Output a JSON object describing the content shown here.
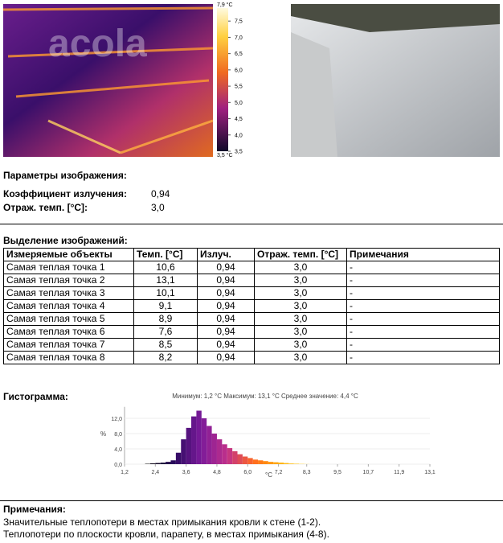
{
  "images": {
    "thermal_scale": {
      "max_label": "7,9 °C",
      "min_label": "3,5 °C",
      "lim": [
        3.5,
        7.9
      ],
      "ticks": [
        {
          "value": 7.5,
          "label": "7,5"
        },
        {
          "value": 7.0,
          "label": "7,0"
        },
        {
          "value": 6.5,
          "label": "6,5"
        },
        {
          "value": 6.0,
          "label": "6,0"
        },
        {
          "value": 5.5,
          "label": "5,5"
        },
        {
          "value": 5.0,
          "label": "5,0"
        },
        {
          "value": 4.5,
          "label": "4,5"
        },
        {
          "value": 4.0,
          "label": "4,0"
        },
        {
          "value": 3.5,
          "label": "3,5"
        }
      ]
    },
    "watermark": "acola"
  },
  "image_params": {
    "title": "Параметры изображения:",
    "rows": [
      [
        "Коэффициент излучения:",
        "0,94"
      ],
      [
        "Отраж. темп. [°C]:",
        "3,0"
      ]
    ]
  },
  "selection": {
    "title": "Выделение изображений:",
    "header": [
      "Измеряемые объекты",
      "Темп. [°C]",
      "Излуч.",
      "Отраж. темп. [°C]",
      "Примечания"
    ],
    "rows": [
      [
        "Самая теплая точка 1",
        "10,6",
        "0,94",
        "3,0",
        "-"
      ],
      [
        "Самая теплая точка 2",
        "13,1",
        "0,94",
        "3,0",
        "-"
      ],
      [
        "Самая теплая точка 3",
        "10,1",
        "0,94",
        "3,0",
        "-"
      ],
      [
        "Самая теплая точка 4",
        "9,1",
        "0,94",
        "3,0",
        "-"
      ],
      [
        "Самая теплая точка 5",
        "8,9",
        "0,94",
        "3,0",
        "-"
      ],
      [
        "Самая теплая точка 6",
        "7,6",
        "0,94",
        "3,0",
        "-"
      ],
      [
        "Самая теплая точка 7",
        "8,5",
        "0,94",
        "3,0",
        "-"
      ],
      [
        "Самая теплая точка 8",
        "8,2",
        "0,94",
        "3,0",
        "-"
      ]
    ]
  },
  "histogram": {
    "title": "Гистограмма:",
    "chart_data": {
      "type": "histogram",
      "subtitle": "Минимум: 1,2 °C Максимум: 13,1 °C Среднее значение: 4,4 °C",
      "y_label": "%",
      "x_label": "°C",
      "bins": [
        2.0,
        2.2,
        2.4,
        2.6,
        2.8,
        3.0,
        3.2,
        3.4,
        3.6,
        3.8,
        4.0,
        4.2,
        4.4,
        4.6,
        4.8,
        5.0,
        5.2,
        5.4,
        5.6,
        5.8,
        6.0,
        6.2,
        6.4,
        6.6,
        6.8,
        7.0,
        7.2,
        7.4,
        7.6,
        7.8,
        8.0,
        8.2,
        8.4
      ],
      "values": [
        0.1,
        0.2,
        0.3,
        0.4,
        0.6,
        1.0,
        3.0,
        6.5,
        9.5,
        12.5,
        14.0,
        12.0,
        10.0,
        8.0,
        6.5,
        5.2,
        4.2,
        3.4,
        2.6,
        2.0,
        1.6,
        1.2,
        1.0,
        0.8,
        0.6,
        0.5,
        0.4,
        0.3,
        0.2,
        0.15,
        0.1,
        0.05
      ],
      "colormap": [
        "#000000",
        "#2a0a5e",
        "#7a1a9a",
        "#c0308a",
        "#ff6a20",
        "#ffb000",
        "#ffe680"
      ],
      "xlim": [
        1.2,
        13.1
      ],
      "ylim": [
        0,
        15
      ],
      "xticks": [
        {
          "value": 1.2,
          "label": "1,2"
        },
        {
          "value": 2.4,
          "label": "2,4"
        },
        {
          "value": 3.6,
          "label": "3,6"
        },
        {
          "value": 4.8,
          "label": "4,8"
        },
        {
          "value": 6.0,
          "label": "6,0"
        },
        {
          "value": 7.2,
          "label": "7,2"
        },
        {
          "value": 8.3,
          "label": "8,3"
        },
        {
          "value": 9.5,
          "label": "9,5"
        },
        {
          "value": 10.7,
          "label": "10,7"
        },
        {
          "value": 11.9,
          "label": "11,9"
        },
        {
          "value": 13.1,
          "label": "13,1"
        }
      ],
      "yticks": [
        {
          "value": 0,
          "label": "0,0"
        },
        {
          "value": 4,
          "label": "4,0"
        },
        {
          "value": 8,
          "label": "8,0"
        },
        {
          "value": 12,
          "label": "12,0"
        }
      ]
    }
  },
  "notes": {
    "title": "Примечания:",
    "lines": [
      "Значительные теплопотери в местах примыкания кровли к стене (1-2).",
      "Теплопотери по плоскости кровли, парапету, в местах примыкания (4-8)."
    ]
  }
}
